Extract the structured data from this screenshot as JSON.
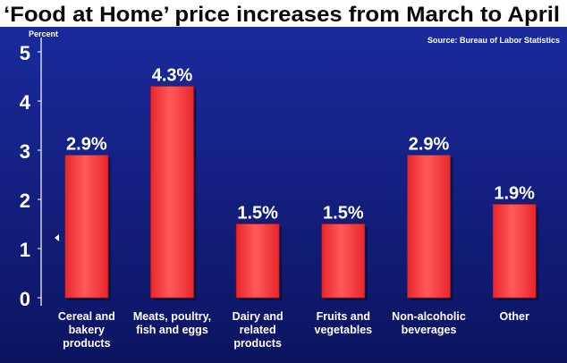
{
  "chart_data": {
    "type": "bar",
    "title": "‘Food at Home’ price increases from March to April",
    "ylabel": "Percent",
    "source": "Source: Bureau of Labor Statistics",
    "categories": [
      [
        "Cereal and",
        "bakery",
        "products"
      ],
      [
        "Meats, poultry,",
        "fish and eggs"
      ],
      [
        "Dairy and",
        "related",
        "products"
      ],
      [
        "Fruits and",
        "vegetables"
      ],
      [
        "Non-alcoholic",
        "beverages"
      ],
      [
        "Other"
      ]
    ],
    "values": [
      2.9,
      4.3,
      1.5,
      1.5,
      2.9,
      1.9
    ],
    "data_labels": [
      "2.9%",
      "4.3%",
      "1.5%",
      "1.5%",
      "2.9%",
      "1.9%"
    ],
    "yticks": [
      "0",
      "1",
      "2",
      "3",
      "4",
      "5"
    ],
    "ylim": [
      0,
      5.3
    ],
    "grid": false,
    "colors": {
      "background_top": "#1a2a9c",
      "background_bottom": "#0c1460",
      "bar": "#e8262b",
      "bar_highlight": "#ff5a5a",
      "text": "#ffffff",
      "title": "#0a0a0a"
    }
  }
}
